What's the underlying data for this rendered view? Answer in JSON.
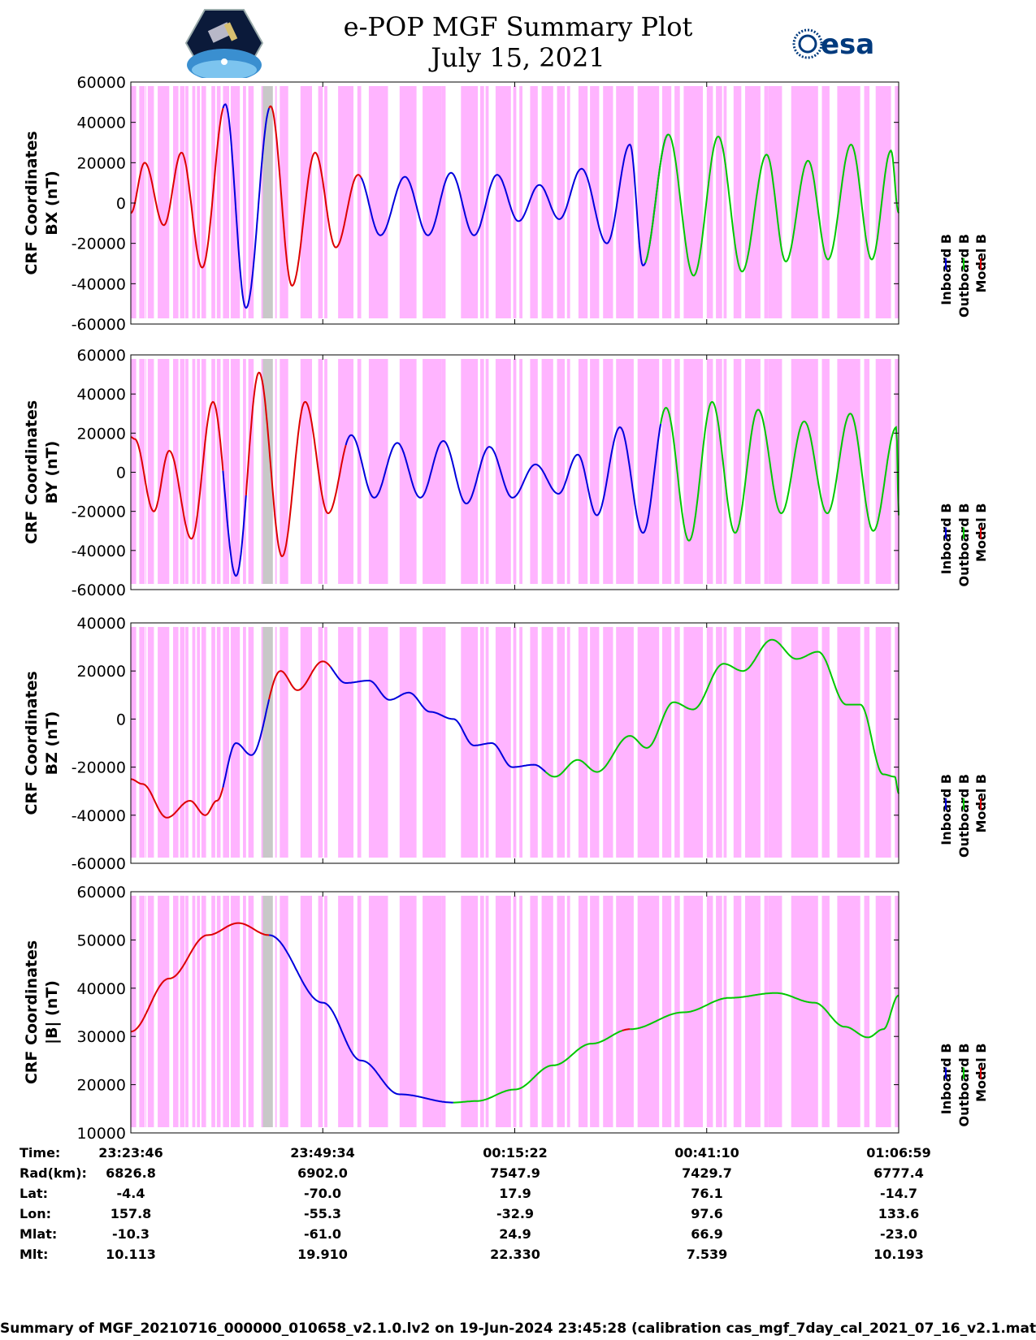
{
  "title": {
    "line1": "e-POP MGF Summary Plot",
    "line2": "July 15, 2021"
  },
  "logos": {
    "left": "cassiope-logo",
    "right": "esa-logo"
  },
  "colors": {
    "inboard": "#0000dd",
    "outboard": "#00c800",
    "model": "#dd0000",
    "shade_pink": "#ffb4ff",
    "shade_gray": "#c8c8c8",
    "axis": "#000000"
  },
  "legend_labels": [
    "Inboard B",
    "Outboard B",
    "Model B"
  ],
  "shading": {
    "pink": [
      [
        0.0,
        0.07
      ],
      [
        0.11,
        0.18
      ],
      [
        0.19,
        0.195
      ],
      [
        0.22,
        0.3
      ],
      [
        0.35,
        0.5
      ],
      [
        0.55,
        0.62
      ],
      [
        0.64,
        0.7
      ],
      [
        0.71,
        0.75
      ],
      [
        0.8,
        0.84
      ],
      [
        0.86,
        0.9
      ],
      [
        0.92,
        0.98
      ],
      [
        1.05,
        1.1
      ],
      [
        1.12,
        1.17
      ],
      [
        1.2,
        1.28
      ],
      [
        1.3,
        1.42
      ],
      [
        1.46,
        1.5
      ],
      [
        1.53,
        1.6
      ],
      [
        1.7,
        1.74
      ],
      [
        1.78,
        1.8
      ],
      [
        1.88,
        1.9
      ],
      [
        1.94,
        2.05
      ],
      [
        2.21,
        2.36
      ],
      [
        2.44,
        2.5
      ],
      [
        2.52,
        2.56
      ],
      [
        2.7,
        2.9
      ],
      [
        2.95,
        3.0
      ],
      [
        3.1,
        3.35
      ],
      [
        3.5,
        3.72
      ],
      [
        3.8,
        4.05
      ],
      [
        4.05,
        4.1
      ],
      [
        4.3,
        4.52
      ],
      [
        4.55,
        4.6
      ],
      [
        4.62,
        4.66
      ],
      [
        4.75,
        4.95
      ],
      [
        4.98,
        5.02
      ],
      [
        5.06,
        5.1
      ],
      [
        5.2,
        5.3
      ],
      [
        5.35,
        5.5
      ],
      [
        5.55,
        5.65
      ],
      [
        5.68,
        5.72
      ],
      [
        5.83,
        5.95
      ],
      [
        5.98,
        6.1
      ],
      [
        6.15,
        6.28
      ],
      [
        6.32,
        6.55
      ],
      [
        6.6,
        6.88
      ],
      [
        6.92,
        7.04
      ],
      [
        7.08,
        7.15
      ],
      [
        7.2,
        7.45
      ],
      [
        7.5,
        7.58
      ],
      [
        7.62,
        7.7
      ],
      [
        7.72,
        7.76
      ],
      [
        7.85,
        7.95
      ],
      [
        8.0,
        8.2
      ],
      [
        8.25,
        8.3
      ],
      [
        8.3,
        8.48
      ],
      [
        8.6,
        8.95
      ],
      [
        9.0,
        9.1
      ],
      [
        9.2,
        9.5
      ],
      [
        9.55,
        9.62
      ],
      [
        9.7,
        9.9
      ],
      [
        9.95,
        10.0
      ]
    ],
    "gray": [
      [
        1.72,
        1.85
      ]
    ]
  },
  "chart_data": [
    {
      "type": "line",
      "panel": "bx",
      "ylabel": "CRF Coordinates BX (nT)",
      "ylim": [
        -60000,
        60000
      ],
      "yticks": [
        "60000",
        "40000",
        "20000",
        "0",
        "-20000",
        "-40000",
        "-60000"
      ],
      "xlim": [
        0,
        10
      ],
      "series_segments": [
        {
          "name": "Model B",
          "color_key": "model",
          "x_range": [
            0,
            1.2
          ]
        },
        {
          "name": "Inboard B",
          "color_key": "inboard",
          "x_range": [
            1.2,
            1.8
          ]
        },
        {
          "name": "Model B",
          "color_key": "model",
          "x_range": [
            1.8,
            3.0
          ]
        },
        {
          "name": "Inboard B",
          "color_key": "inboard",
          "x_range": [
            3.0,
            6.7
          ]
        },
        {
          "name": "Inboard B",
          "color_key": "inboard",
          "x_range": [
            6.7,
            7.0
          ]
        },
        {
          "name": "Outboard B",
          "color_key": "outboard",
          "x_range": [
            6.7,
            10.0
          ]
        }
      ],
      "extrema": [
        {
          "x": 0.0,
          "y": -5000
        },
        {
          "x": 0.18,
          "y": 20000
        },
        {
          "x": 0.43,
          "y": -11000
        },
        {
          "x": 0.66,
          "y": 25000
        },
        {
          "x": 0.93,
          "y": -32000
        },
        {
          "x": 1.23,
          "y": 49000
        },
        {
          "x": 1.5,
          "y": -52000
        },
        {
          "x": 1.82,
          "y": 48000
        },
        {
          "x": 2.1,
          "y": -41000
        },
        {
          "x": 2.4,
          "y": 25000
        },
        {
          "x": 2.67,
          "y": -22000
        },
        {
          "x": 2.96,
          "y": 14000
        },
        {
          "x": 3.25,
          "y": -16000
        },
        {
          "x": 3.57,
          "y": 13000
        },
        {
          "x": 3.87,
          "y": -16000
        },
        {
          "x": 4.17,
          "y": 15000
        },
        {
          "x": 4.47,
          "y": -16000
        },
        {
          "x": 4.77,
          "y": 14000
        },
        {
          "x": 5.05,
          "y": -9000
        },
        {
          "x": 5.32,
          "y": 9000
        },
        {
          "x": 5.58,
          "y": -8000
        },
        {
          "x": 5.87,
          "y": 17000
        },
        {
          "x": 6.2,
          "y": -20000
        },
        {
          "x": 6.5,
          "y": 29000
        },
        {
          "x": 6.67,
          "y": -31000
        },
        {
          "x": 7.0,
          "y": 34000
        },
        {
          "x": 7.33,
          "y": -36000
        },
        {
          "x": 7.65,
          "y": 33000
        },
        {
          "x": 7.96,
          "y": -34000
        },
        {
          "x": 8.28,
          "y": 24000
        },
        {
          "x": 8.53,
          "y": -29000
        },
        {
          "x": 8.82,
          "y": 21000
        },
        {
          "x": 9.08,
          "y": -28000
        },
        {
          "x": 9.38,
          "y": 29000
        },
        {
          "x": 9.65,
          "y": -28000
        },
        {
          "x": 9.9,
          "y": 26000
        },
        {
          "x": 10.0,
          "y": -5000
        }
      ]
    },
    {
      "type": "line",
      "panel": "by",
      "ylabel": "CRF Coordinates BY (nT)",
      "ylim": [
        -60000,
        60000
      ],
      "yticks": [
        "60000",
        "40000",
        "20000",
        "0",
        "-20000",
        "-40000",
        "-60000"
      ],
      "xlim": [
        0,
        10
      ],
      "series_segments": [
        {
          "name": "Model B",
          "color_key": "model",
          "x_range": [
            0,
            1.2
          ]
        },
        {
          "name": "Inboard B",
          "color_key": "inboard",
          "x_range": [
            1.2,
            1.5
          ]
        },
        {
          "name": "Model B",
          "color_key": "model",
          "x_range": [
            1.5,
            2.8
          ]
        },
        {
          "name": "Inboard B",
          "color_key": "inboard",
          "x_range": [
            2.8,
            6.9
          ]
        },
        {
          "name": "Outboard B",
          "color_key": "outboard",
          "x_range": [
            6.9,
            10.0
          ]
        }
      ],
      "extrema": [
        {
          "x": 0.0,
          "y": 18000
        },
        {
          "x": 0.05,
          "y": 17000
        },
        {
          "x": 0.3,
          "y": -20000
        },
        {
          "x": 0.5,
          "y": 11000
        },
        {
          "x": 0.79,
          "y": -34000
        },
        {
          "x": 1.07,
          "y": 36000
        },
        {
          "x": 1.37,
          "y": -53000
        },
        {
          "x": 1.67,
          "y": 51000
        },
        {
          "x": 1.97,
          "y": -43000
        },
        {
          "x": 2.27,
          "y": 36000
        },
        {
          "x": 2.57,
          "y": -21000
        },
        {
          "x": 2.87,
          "y": 19000
        },
        {
          "x": 3.17,
          "y": -13000
        },
        {
          "x": 3.47,
          "y": 15000
        },
        {
          "x": 3.77,
          "y": -13000
        },
        {
          "x": 4.07,
          "y": 16000
        },
        {
          "x": 4.37,
          "y": -16000
        },
        {
          "x": 4.67,
          "y": 13000
        },
        {
          "x": 4.97,
          "y": -13000
        },
        {
          "x": 5.27,
          "y": 4000
        },
        {
          "x": 5.57,
          "y": -11000
        },
        {
          "x": 5.82,
          "y": 9000
        },
        {
          "x": 6.07,
          "y": -22000
        },
        {
          "x": 6.37,
          "y": 23000
        },
        {
          "x": 6.67,
          "y": -31000
        },
        {
          "x": 6.97,
          "y": 33000
        },
        {
          "x": 7.27,
          "y": -35000
        },
        {
          "x": 7.57,
          "y": 36000
        },
        {
          "x": 7.87,
          "y": -31000
        },
        {
          "x": 8.17,
          "y": 32000
        },
        {
          "x": 8.47,
          "y": -21000
        },
        {
          "x": 8.77,
          "y": 26000
        },
        {
          "x": 9.07,
          "y": -21000
        },
        {
          "x": 9.37,
          "y": 30000
        },
        {
          "x": 9.67,
          "y": -30000
        },
        {
          "x": 9.97,
          "y": 23000
        },
        {
          "x": 10.0,
          "y": -22000
        }
      ]
    },
    {
      "type": "line",
      "panel": "bz",
      "ylabel": "CRF Coordinates BZ (nT)",
      "ylim": [
        -60000,
        40000
      ],
      "yticks": [
        "40000",
        "20000",
        "0",
        "-20000",
        "-40000",
        "-60000"
      ],
      "xlim": [
        0,
        10
      ],
      "series_segments": [
        {
          "name": "Model B",
          "color_key": "model",
          "x_range": [
            0,
            1.2
          ]
        },
        {
          "name": "Inboard B",
          "color_key": "inboard",
          "x_range": [
            1.2,
            1.8
          ]
        },
        {
          "name": "Model B",
          "color_key": "model",
          "x_range": [
            1.8,
            2.6
          ]
        },
        {
          "name": "Inboard B",
          "color_key": "inboard",
          "x_range": [
            2.6,
            5.4
          ]
        },
        {
          "name": "Outboard B",
          "color_key": "outboard",
          "x_range": [
            5.4,
            10.0
          ]
        }
      ],
      "extrema": [
        {
          "x": 0.0,
          "y": -25000
        },
        {
          "x": 0.15,
          "y": -27000
        },
        {
          "x": 0.47,
          "y": -41000
        },
        {
          "x": 0.77,
          "y": -34000
        },
        {
          "x": 0.97,
          "y": -40000
        },
        {
          "x": 1.12,
          "y": -34000
        },
        {
          "x": 1.37,
          "y": -10000
        },
        {
          "x": 1.57,
          "y": -15000
        },
        {
          "x": 1.95,
          "y": 20000
        },
        {
          "x": 2.17,
          "y": 12000
        },
        {
          "x": 2.5,
          "y": 24000
        },
        {
          "x": 2.8,
          "y": 15000
        },
        {
          "x": 3.1,
          "y": 16000
        },
        {
          "x": 3.37,
          "y": 8000
        },
        {
          "x": 3.62,
          "y": 11000
        },
        {
          "x": 3.9,
          "y": 3000
        },
        {
          "x": 4.2,
          "y": 0
        },
        {
          "x": 4.47,
          "y": -11000
        },
        {
          "x": 4.7,
          "y": -10000
        },
        {
          "x": 4.97,
          "y": -20000
        },
        {
          "x": 5.25,
          "y": -19000
        },
        {
          "x": 5.52,
          "y": -24000
        },
        {
          "x": 5.82,
          "y": -17000
        },
        {
          "x": 6.07,
          "y": -22000
        },
        {
          "x": 6.5,
          "y": -7000
        },
        {
          "x": 6.72,
          "y": -12000
        },
        {
          "x": 7.07,
          "y": 7000
        },
        {
          "x": 7.32,
          "y": 4000
        },
        {
          "x": 7.72,
          "y": 23000
        },
        {
          "x": 7.97,
          "y": 20000
        },
        {
          "x": 8.35,
          "y": 33000
        },
        {
          "x": 8.67,
          "y": 25000
        },
        {
          "x": 8.95,
          "y": 28000
        },
        {
          "x": 9.32,
          "y": 6000
        },
        {
          "x": 9.5,
          "y": 6000
        },
        {
          "x": 9.8,
          "y": -23000
        },
        {
          "x": 9.95,
          "y": -24000
        },
        {
          "x": 10.0,
          "y": -31000
        }
      ]
    },
    {
      "type": "line",
      "panel": "bmag",
      "ylabel": "CRF Coordinates |B| (nT)",
      "ylim": [
        10000,
        60000
      ],
      "yticks": [
        "60000",
        "50000",
        "40000",
        "30000",
        "20000",
        "10000"
      ],
      "xlim": [
        0,
        10
      ],
      "series_segments": [
        {
          "name": "Model B",
          "color_key": "model",
          "x_range": [
            0,
            1.8
          ]
        },
        {
          "name": "Inboard B",
          "color_key": "inboard",
          "x_range": [
            1.8,
            4.2
          ]
        },
        {
          "name": "Outboard B",
          "color_key": "outboard",
          "x_range": [
            4.2,
            6.4
          ]
        },
        {
          "name": "Model B",
          "color_key": "model",
          "x_range": [
            6.4,
            6.5
          ]
        },
        {
          "name": "Outboard B",
          "color_key": "outboard",
          "x_range": [
            6.5,
            10.0
          ]
        }
      ],
      "extrema": [
        {
          "x": 0.0,
          "y": 31000
        },
        {
          "x": 0.5,
          "y": 42000
        },
        {
          "x": 1.0,
          "y": 51000
        },
        {
          "x": 1.4,
          "y": 53500
        },
        {
          "x": 1.8,
          "y": 51000
        },
        {
          "x": 2.5,
          "y": 37000
        },
        {
          "x": 3.0,
          "y": 25000
        },
        {
          "x": 3.5,
          "y": 18000
        },
        {
          "x": 4.2,
          "y": 16300
        },
        {
          "x": 4.5,
          "y": 16600
        },
        {
          "x": 5.0,
          "y": 19000
        },
        {
          "x": 5.5,
          "y": 24000
        },
        {
          "x": 6.0,
          "y": 28500
        },
        {
          "x": 6.5,
          "y": 31500
        },
        {
          "x": 7.2,
          "y": 35000
        },
        {
          "x": 7.8,
          "y": 38000
        },
        {
          "x": 8.4,
          "y": 39000
        },
        {
          "x": 8.9,
          "y": 37000
        },
        {
          "x": 9.3,
          "y": 32000
        },
        {
          "x": 9.6,
          "y": 29800
        },
        {
          "x": 9.8,
          "y": 31500
        },
        {
          "x": 10.0,
          "y": 38500
        }
      ]
    }
  ],
  "summary_table": {
    "row_labels": [
      "Time:",
      "Rad(km):",
      "Lat:",
      "Lon:",
      "Mlat:",
      "Mlt:"
    ],
    "columns": [
      [
        "23:23:46",
        "6826.8",
        "-4.4",
        "157.8",
        "-10.3",
        "10.113"
      ],
      [
        "23:49:34",
        "6902.0",
        "-70.0",
        "-55.3",
        "-61.0",
        "19.910"
      ],
      [
        "00:15:22",
        "7547.9",
        "17.9",
        "-32.9",
        "24.9",
        "22.330"
      ],
      [
        "00:41:10",
        "7429.7",
        "76.1",
        "97.6",
        "66.9",
        "7.539"
      ],
      [
        "01:06:59",
        "6777.4",
        "-14.7",
        "133.6",
        "-23.0",
        "10.193"
      ]
    ]
  },
  "footer": "Summary of MGF_20210716_000000_010658_v2.1.0.lv2 on 19-Jun-2024 23:45:28 (calibration cas_mgf_7day_cal_2021_07_16_v2.1.mat )"
}
